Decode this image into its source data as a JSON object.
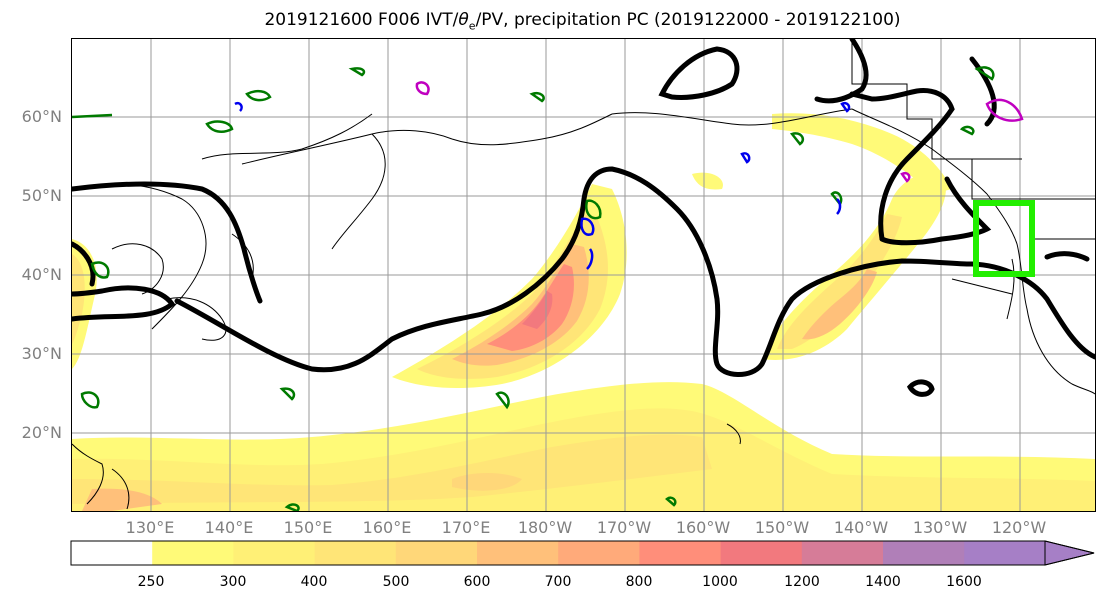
{
  "title": {
    "prefix": "2019121600 F006 IVT/",
    "theta": "θ",
    "sub": "e",
    "suffix": "/PV, precipitation PC (2019122000 - 2019122100)"
  },
  "map": {
    "lat_labels": [
      "60°N",
      "50°N",
      "40°N",
      "30°N",
      "20°N"
    ],
    "lon_labels": [
      "130°E",
      "140°E",
      "150°E",
      "160°E",
      "170°E",
      "180°W",
      "170°W",
      "160°W",
      "150°W",
      "140°W",
      "130°W",
      "120°W"
    ],
    "highlight_box": {
      "color": "#22ee00",
      "description_lat": [
        40,
        49
      ],
      "description_lon": [
        -127,
        -120
      ]
    }
  },
  "colorbar": {
    "ticks": [
      "250",
      "300",
      "400",
      "500",
      "600",
      "700",
      "800",
      "1000",
      "1200",
      "1400",
      "1600"
    ],
    "colors": [
      "#ffffff",
      "#fffa78",
      "#fff076",
      "#ffe577",
      "#ffd779",
      "#ffc07a",
      "#ffaa7a",
      "#ff8e7a",
      "#f2797e",
      "#d67c98",
      "#b07fb8",
      "#a67fc6"
    ]
  },
  "colors": {
    "contour_black": "#000000",
    "contour_green": "#007a00",
    "contour_blue": "#0000ee",
    "contour_magenta": "#c000c0",
    "box_green": "#22ee00",
    "axis_label_gray": "#808080"
  }
}
